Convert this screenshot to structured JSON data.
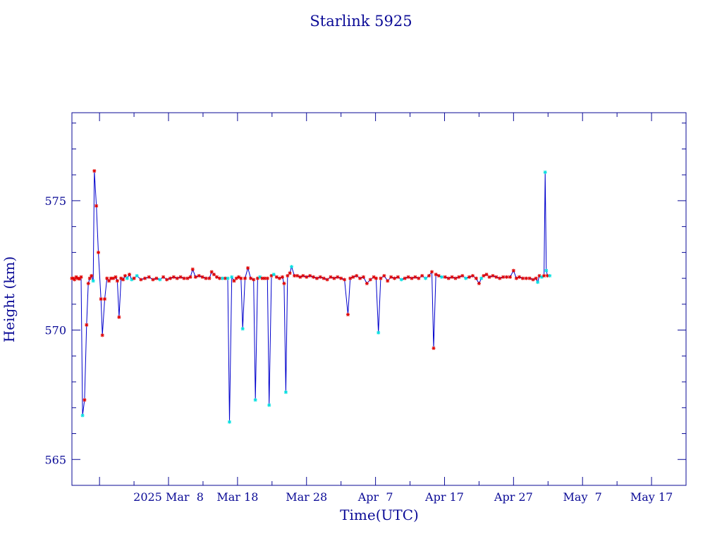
{
  "chart_data": {
    "type": "line",
    "title": "Starlink 5925",
    "xlabel": "Time(UTC)",
    "ylabel": "Height (km)",
    "x_tick_labels": [
      "2025 Mar  8",
      "Mar 18",
      "Mar 28",
      "Apr  7",
      "Apr 17",
      "Apr 27",
      "May  7",
      "May 17"
    ],
    "x_tick_dates": [
      "2025-03-08",
      "2025-03-18",
      "2025-03-28",
      "2025-04-07",
      "2025-04-17",
      "2025-04-27",
      "2025-05-07",
      "2025-05-17"
    ],
    "xlim": [
      "2025-02-22",
      "2025-05-22"
    ],
    "y_tick_labels": [
      "565",
      "570",
      "575"
    ],
    "y_ticks": [
      565,
      570,
      575
    ],
    "ylim": [
      564,
      578.4
    ],
    "grid": false,
    "line_color": "#0000cc",
    "marker_colors": {
      "red": "#e00000",
      "cyan": "#00e0e0"
    },
    "series": [
      {
        "values": [
          [
            "2025-02-22T00:00",
            572.0,
            "r"
          ],
          [
            "2025-02-22T04:00",
            572.0,
            "r"
          ],
          [
            "2025-02-22T09:00",
            571.95,
            "r"
          ],
          [
            "2025-02-22T15:00",
            572.05,
            "r"
          ],
          [
            "2025-02-22T20:00",
            572.0,
            "r"
          ],
          [
            "2025-02-23T02:00",
            571.98,
            "r"
          ],
          [
            "2025-02-23T08:00",
            572.05,
            "r"
          ],
          [
            "2025-02-23T13:00",
            566.7,
            "c"
          ],
          [
            "2025-02-23T20:00",
            567.3,
            "r"
          ],
          [
            "2025-02-24T03:00",
            570.2,
            "r"
          ],
          [
            "2025-02-24T09:00",
            571.8,
            "r"
          ],
          [
            "2025-02-24T14:00",
            572.0,
            "r"
          ],
          [
            "2025-02-24T20:00",
            572.1,
            "r"
          ],
          [
            "2025-02-25T02:00",
            571.9,
            "c"
          ],
          [
            "2025-02-25T06:00",
            576.15,
            "r"
          ],
          [
            "2025-02-25T13:00",
            574.8,
            "r"
          ],
          [
            "2025-02-25T20:00",
            573.0,
            "r"
          ],
          [
            "2025-02-26T05:00",
            571.2,
            "r"
          ],
          [
            "2025-02-26T10:00",
            569.8,
            "r"
          ],
          [
            "2025-02-26T18:00",
            571.2,
            "r"
          ],
          [
            "2025-02-27T02:00",
            572.0,
            "r"
          ],
          [
            "2025-02-27T09:00",
            571.9,
            "r"
          ],
          [
            "2025-02-27T16:00",
            572.0,
            "r"
          ],
          [
            "2025-02-28T00:00",
            572.0,
            "r"
          ],
          [
            "2025-02-28T08:00",
            572.05,
            "r"
          ],
          [
            "2025-02-28T14:00",
            571.9,
            "r"
          ],
          [
            "2025-02-28T20:00",
            570.5,
            "r"
          ],
          [
            "2025-03-01T03:00",
            572.0,
            "r"
          ],
          [
            "2025-03-01T10:00",
            571.95,
            "r"
          ],
          [
            "2025-03-01T17:00",
            572.1,
            "r"
          ],
          [
            "2025-03-02T00:00",
            572.0,
            "c"
          ],
          [
            "2025-03-02T08:00",
            572.15,
            "r"
          ],
          [
            "2025-03-02T16:00",
            571.95,
            "c"
          ],
          [
            "2025-03-03T00:00",
            572.0,
            "r"
          ],
          [
            "2025-03-03T10:00",
            572.1,
            "c"
          ],
          [
            "2025-03-04T00:00",
            571.95,
            "r"
          ],
          [
            "2025-03-04T14:00",
            572.0,
            "r"
          ],
          [
            "2025-03-05T04:00",
            572.05,
            "r"
          ],
          [
            "2025-03-05T18:00",
            571.95,
            "r"
          ],
          [
            "2025-03-06T06:00",
            572.0,
            "r"
          ],
          [
            "2025-03-06T18:00",
            571.95,
            "c"
          ],
          [
            "2025-03-07T06:00",
            572.05,
            "r"
          ],
          [
            "2025-03-07T18:00",
            571.95,
            "r"
          ],
          [
            "2025-03-08T06:00",
            572.0,
            "r"
          ],
          [
            "2025-03-08T18:00",
            572.05,
            "r"
          ],
          [
            "2025-03-09T06:00",
            572.0,
            "r"
          ],
          [
            "2025-03-09T18:00",
            572.05,
            "r"
          ],
          [
            "2025-03-10T06:00",
            572.0,
            "r"
          ],
          [
            "2025-03-10T18:00",
            572.0,
            "r"
          ],
          [
            "2025-03-11T04:00",
            572.05,
            "r"
          ],
          [
            "2025-03-11T12:00",
            572.35,
            "r"
          ],
          [
            "2025-03-11T22:00",
            572.05,
            "r"
          ],
          [
            "2025-03-12T10:00",
            572.1,
            "r"
          ],
          [
            "2025-03-12T22:00",
            572.05,
            "r"
          ],
          [
            "2025-03-13T10:00",
            572.0,
            "r"
          ],
          [
            "2025-03-13T22:00",
            572.0,
            "r"
          ],
          [
            "2025-03-14T06:00",
            572.25,
            "r"
          ],
          [
            "2025-03-14T14:00",
            572.15,
            "r"
          ],
          [
            "2025-03-15T00:00",
            572.05,
            "r"
          ],
          [
            "2025-03-15T10:00",
            572.0,
            "r"
          ],
          [
            "2025-03-15T20:00",
            572.0,
            "c"
          ],
          [
            "2025-03-16T06:00",
            572.0,
            "r"
          ],
          [
            "2025-03-16T14:00",
            572.0,
            "c"
          ],
          [
            "2025-03-16T20:00",
            566.45,
            "c"
          ],
          [
            "2025-03-17T04:00",
            572.05,
            "c"
          ],
          [
            "2025-03-17T12:00",
            571.9,
            "r"
          ],
          [
            "2025-03-17T20:00",
            572.0,
            "r"
          ],
          [
            "2025-03-18T04:00",
            572.05,
            "r"
          ],
          [
            "2025-03-18T12:00",
            572.0,
            "r"
          ],
          [
            "2025-03-18T18:00",
            570.05,
            "c"
          ],
          [
            "2025-03-19T02:00",
            572.0,
            "r"
          ],
          [
            "2025-03-19T12:00",
            572.4,
            "r"
          ],
          [
            "2025-03-19T22:00",
            572.0,
            "r"
          ],
          [
            "2025-03-20T08:00",
            571.95,
            "r"
          ],
          [
            "2025-03-20T14:00",
            567.3,
            "c"
          ],
          [
            "2025-03-20T22:00",
            572.0,
            "r"
          ],
          [
            "2025-03-21T06:00",
            572.05,
            "c"
          ],
          [
            "2025-03-21T14:00",
            572.0,
            "r"
          ],
          [
            "2025-03-21T22:00",
            572.0,
            "r"
          ],
          [
            "2025-03-22T08:00",
            572.0,
            "r"
          ],
          [
            "2025-03-22T14:00",
            567.1,
            "c"
          ],
          [
            "2025-03-22T22:00",
            572.1,
            "r"
          ],
          [
            "2025-03-23T06:00",
            572.15,
            "c"
          ],
          [
            "2025-03-23T16:00",
            572.05,
            "r"
          ],
          [
            "2025-03-24T02:00",
            572.0,
            "r"
          ],
          [
            "2025-03-24T12:00",
            572.05,
            "r"
          ],
          [
            "2025-03-24T18:00",
            571.8,
            "r"
          ],
          [
            "2025-03-25T00:00",
            567.6,
            "c"
          ],
          [
            "2025-03-25T06:00",
            572.1,
            "r"
          ],
          [
            "2025-03-25T14:00",
            572.2,
            "r"
          ],
          [
            "2025-03-25T20:00",
            572.45,
            "c"
          ],
          [
            "2025-03-26T06:00",
            572.1,
            "r"
          ],
          [
            "2025-03-26T16:00",
            572.1,
            "r"
          ],
          [
            "2025-03-27T02:00",
            572.05,
            "r"
          ],
          [
            "2025-03-27T12:00",
            572.1,
            "r"
          ],
          [
            "2025-03-28T00:00",
            572.05,
            "r"
          ],
          [
            "2025-03-28T12:00",
            572.1,
            "r"
          ],
          [
            "2025-03-29T00:00",
            572.05,
            "r"
          ],
          [
            "2025-03-29T12:00",
            572.0,
            "r"
          ],
          [
            "2025-03-30T00:00",
            572.05,
            "r"
          ],
          [
            "2025-03-30T12:00",
            572.0,
            "r"
          ],
          [
            "2025-03-31T00:00",
            571.95,
            "r"
          ],
          [
            "2025-03-31T12:00",
            572.05,
            "r"
          ],
          [
            "2025-04-01T00:00",
            572.0,
            "r"
          ],
          [
            "2025-04-01T12:00",
            572.05,
            "r"
          ],
          [
            "2025-04-02T00:00",
            572.0,
            "r"
          ],
          [
            "2025-04-02T12:00",
            571.95,
            "r"
          ],
          [
            "2025-04-03T00:00",
            570.6,
            "r"
          ],
          [
            "2025-04-03T08:00",
            572.0,
            "r"
          ],
          [
            "2025-04-03T18:00",
            572.05,
            "r"
          ],
          [
            "2025-04-04T06:00",
            572.1,
            "r"
          ],
          [
            "2025-04-04T18:00",
            572.0,
            "r"
          ],
          [
            "2025-04-05T06:00",
            572.05,
            "r"
          ],
          [
            "2025-04-05T18:00",
            571.8,
            "r"
          ],
          [
            "2025-04-06T06:00",
            571.95,
            "r"
          ],
          [
            "2025-04-06T18:00",
            572.05,
            "r"
          ],
          [
            "2025-04-07T02:00",
            572.0,
            "r"
          ],
          [
            "2025-04-07T10:00",
            569.9,
            "c"
          ],
          [
            "2025-04-07T18:00",
            572.0,
            "r"
          ],
          [
            "2025-04-08T06:00",
            572.1,
            "r"
          ],
          [
            "2025-04-08T18:00",
            571.9,
            "r"
          ],
          [
            "2025-04-09T06:00",
            572.05,
            "r"
          ],
          [
            "2025-04-09T18:00",
            572.0,
            "r"
          ],
          [
            "2025-04-10T06:00",
            572.05,
            "r"
          ],
          [
            "2025-04-10T18:00",
            571.95,
            "c"
          ],
          [
            "2025-04-11T06:00",
            572.0,
            "r"
          ],
          [
            "2025-04-11T18:00",
            572.05,
            "r"
          ],
          [
            "2025-04-12T06:00",
            572.0,
            "r"
          ],
          [
            "2025-04-12T18:00",
            572.05,
            "r"
          ],
          [
            "2025-04-13T06:00",
            572.0,
            "r"
          ],
          [
            "2025-04-13T18:00",
            572.1,
            "r"
          ],
          [
            "2025-04-14T06:00",
            572.0,
            "c"
          ],
          [
            "2025-04-14T18:00",
            572.1,
            "r"
          ],
          [
            "2025-04-15T04:00",
            572.25,
            "r"
          ],
          [
            "2025-04-15T10:00",
            569.3,
            "r"
          ],
          [
            "2025-04-15T18:00",
            572.15,
            "r"
          ],
          [
            "2025-04-16T04:00",
            572.1,
            "r"
          ],
          [
            "2025-04-16T14:00",
            572.05,
            "c"
          ],
          [
            "2025-04-17T02:00",
            572.05,
            "r"
          ],
          [
            "2025-04-17T14:00",
            572.0,
            "r"
          ],
          [
            "2025-04-18T02:00",
            572.05,
            "r"
          ],
          [
            "2025-04-18T14:00",
            572.0,
            "r"
          ],
          [
            "2025-04-19T02:00",
            572.05,
            "r"
          ],
          [
            "2025-04-19T14:00",
            572.1,
            "r"
          ],
          [
            "2025-04-20T02:00",
            572.0,
            "c"
          ],
          [
            "2025-04-20T14:00",
            572.05,
            "r"
          ],
          [
            "2025-04-21T02:00",
            572.1,
            "r"
          ],
          [
            "2025-04-21T14:00",
            572.0,
            "r"
          ],
          [
            "2025-04-22T00:00",
            571.8,
            "r"
          ],
          [
            "2025-04-22T08:00",
            572.0,
            "c"
          ],
          [
            "2025-04-22T16:00",
            572.1,
            "r"
          ],
          [
            "2025-04-23T02:00",
            572.15,
            "r"
          ],
          [
            "2025-04-23T12:00",
            572.05,
            "r"
          ],
          [
            "2025-04-24T00:00",
            572.1,
            "r"
          ],
          [
            "2025-04-24T12:00",
            572.05,
            "r"
          ],
          [
            "2025-04-25T00:00",
            572.0,
            "r"
          ],
          [
            "2025-04-25T12:00",
            572.05,
            "r"
          ],
          [
            "2025-04-26T00:00",
            572.05,
            "r"
          ],
          [
            "2025-04-26T12:00",
            572.05,
            "r"
          ],
          [
            "2025-04-27T00:00",
            572.3,
            "r"
          ],
          [
            "2025-04-27T10:00",
            572.0,
            "r"
          ],
          [
            "2025-04-27T20:00",
            572.05,
            "r"
          ],
          [
            "2025-04-28T08:00",
            572.0,
            "r"
          ],
          [
            "2025-04-28T20:00",
            572.0,
            "r"
          ],
          [
            "2025-04-29T08:00",
            572.0,
            "r"
          ],
          [
            "2025-04-29T20:00",
            571.95,
            "r"
          ],
          [
            "2025-04-30T06:00",
            572.0,
            "r"
          ],
          [
            "2025-04-30T12:00",
            571.85,
            "c"
          ],
          [
            "2025-04-30T18:00",
            572.1,
            "r"
          ],
          [
            "2025-05-01T02:00",
            572.05,
            "c"
          ],
          [
            "2025-05-01T10:00",
            572.1,
            "r"
          ],
          [
            "2025-05-01T14:00",
            576.1,
            "c"
          ],
          [
            "2025-05-01T18:00",
            572.3,
            "c"
          ],
          [
            "2025-05-01T22:00",
            572.1,
            "r"
          ],
          [
            "2025-05-02T06:00",
            572.1,
            "c"
          ]
        ]
      }
    ]
  }
}
